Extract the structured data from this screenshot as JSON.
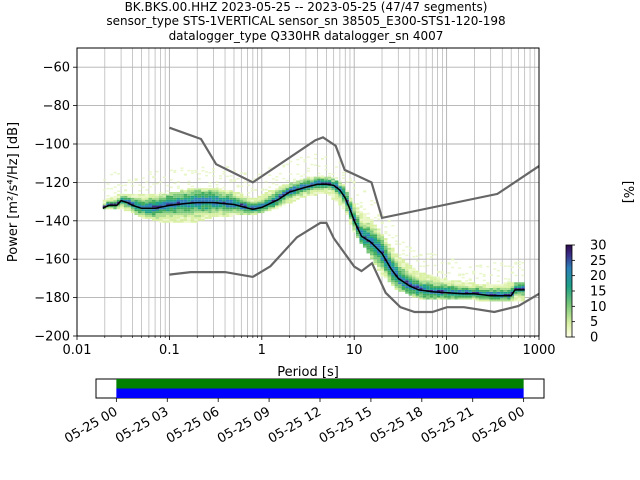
{
  "chart_data": {
    "type": "ppsd",
    "title_lines": [
      "BK.BKS.00.HHZ   2023-05-25 -- 2023-05-25  (47/47 segments)",
      "sensor_type STS-1VERTICAL sensor_sn 38505_E300-STS1-120-198",
      "datalogger_type Q330HR datalogger_sn 4007"
    ],
    "xlabel": "Period [s]",
    "ylabel": "Power [m²/s⁴/Hz] [dB]",
    "xscale": "log",
    "xlim": [
      0.01,
      1000
    ],
    "ylim": [
      -200,
      -50
    ],
    "x_ticks": [
      {
        "value": 0.01,
        "label": "0.01"
      },
      {
        "value": 0.1,
        "label": "0.1"
      },
      {
        "value": 1,
        "label": "1"
      },
      {
        "value": 10,
        "label": "10"
      },
      {
        "value": 100,
        "label": "100"
      },
      {
        "value": 1000,
        "label": "1000"
      }
    ],
    "y_ticks": [
      -60,
      -80,
      -100,
      -120,
      -140,
      -160,
      -180,
      -200
    ],
    "grid": true,
    "colorbar": {
      "label": "[%]",
      "range": [
        0,
        30
      ],
      "ticks": [
        0,
        5,
        10,
        15,
        20,
        25,
        30
      ]
    },
    "nhnm": {
      "period": [
        0.1,
        0.22,
        0.32,
        0.8,
        3.8,
        4.6,
        6.3,
        7.9,
        15.4,
        20,
        354.8,
        1000
      ],
      "db": [
        -91.5,
        -97.4,
        -110.5,
        -120,
        -98,
        -96.5,
        -101,
        -113.5,
        -120,
        -138.5,
        -126,
        -111.5
      ]
    },
    "nlnm": {
      "period": [
        0.1,
        0.17,
        0.4,
        0.8,
        1.24,
        2.4,
        4.3,
        5,
        6,
        10,
        12,
        15.6,
        21.9,
        31.6,
        45,
        70,
        101,
        154,
        328,
        600,
        1000
      ],
      "db": [
        -168,
        -166.7,
        -166.7,
        -169.2,
        -163.7,
        -148.6,
        -141.1,
        -141.1,
        -149,
        -163.8,
        -166.2,
        -162.1,
        -177.5,
        -185,
        -187.5,
        -187.5,
        -185,
        -185,
        -187.5,
        -184.4,
        -178
      ]
    },
    "mean_curve": {
      "period": [
        0.019,
        0.022,
        0.027,
        0.03,
        0.035,
        0.04,
        0.05,
        0.07,
        0.1,
        0.15,
        0.2,
        0.3,
        0.5,
        0.8,
        1,
        1.5,
        2,
        3,
        4,
        5,
        6,
        7,
        8,
        9,
        10,
        12,
        15,
        20,
        25,
        30,
        40,
        50,
        70,
        100,
        150,
        200,
        300,
        400,
        500,
        550,
        700
      ],
      "db": [
        -133.5,
        -132,
        -132,
        -129.5,
        -130.5,
        -132,
        -133.5,
        -133.5,
        -132,
        -131,
        -130.5,
        -130.5,
        -131.5,
        -134,
        -133,
        -129,
        -125,
        -122.5,
        -121,
        -121,
        -121.5,
        -124,
        -128,
        -134,
        -140,
        -148,
        -151,
        -157,
        -165,
        -170,
        -174,
        -176,
        -177,
        -177.5,
        -178,
        -178,
        -179,
        -179,
        -179,
        -176,
        -176
      ]
    },
    "density_band": {
      "period": [
        0.019,
        0.03,
        0.05,
        0.1,
        0.2,
        0.3,
        0.5,
        0.8,
        1.5,
        3,
        5,
        8,
        10,
        15,
        20,
        30,
        50,
        100,
        200,
        400,
        700
      ],
      "upper_db": [
        -131,
        -127,
        -128,
        -127,
        -124,
        -124,
        -126,
        -130,
        -124,
        -119,
        -118,
        -123,
        -133,
        -140,
        -148,
        -160,
        -168,
        -172,
        -174,
        -174,
        -173
      ],
      "lower_db": [
        -134,
        -133,
        -138,
        -141,
        -140,
        -138,
        -137,
        -137,
        -133,
        -127,
        -125,
        -134,
        -146,
        -158,
        -168,
        -176,
        -180,
        -181,
        -181,
        -182,
        -181
      ]
    },
    "timeline": {
      "tick_labels": [
        "05-25 00",
        "05-25 03",
        "05-25 06",
        "05-25 09",
        "05-25 12",
        "05-25 15",
        "05-25 18",
        "05-25 21",
        "05-26 00"
      ],
      "tick_hours": [
        0,
        3,
        6,
        9,
        12,
        15,
        18,
        21,
        24
      ],
      "range_hours": [
        -1.2,
        25.2
      ],
      "coverage_hours": [
        0,
        24
      ],
      "colors": {
        "upper": "#008000",
        "lower": "#0000ff"
      }
    }
  }
}
